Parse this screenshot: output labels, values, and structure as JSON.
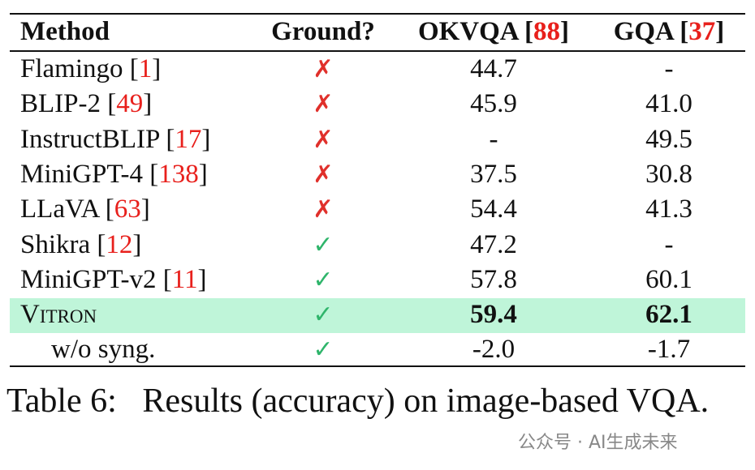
{
  "table": {
    "header": [
      {
        "text": "Method"
      },
      {
        "text": "Ground?"
      },
      {
        "text": "OKVQA [",
        "ref": "88",
        "close": "]"
      },
      {
        "text": "GQA [",
        "ref": "37",
        "close": "]"
      }
    ],
    "rows": [
      {
        "method": {
          "text": "Flamingo [",
          "ref": "1",
          "close": "]"
        },
        "ground": {
          "mark": "✗",
          "color": "#e0302b"
        },
        "okvqa": "44.7",
        "gqa": "-"
      },
      {
        "method": {
          "text": "BLIP-2 [",
          "ref": "49",
          "close": "]"
        },
        "ground": {
          "mark": "✗",
          "color": "#e0302b"
        },
        "okvqa": "45.9",
        "gqa": "41.0"
      },
      {
        "method": {
          "text": "InstructBLIP [",
          "ref": "17",
          "close": "]"
        },
        "ground": {
          "mark": "✗",
          "color": "#e0302b"
        },
        "okvqa": "-",
        "gqa": "49.5"
      },
      {
        "method": {
          "text": "MiniGPT-4 [",
          "ref": "138",
          "close": "]"
        },
        "ground": {
          "mark": "✗",
          "color": "#e0302b"
        },
        "okvqa": "37.5",
        "gqa": "30.8"
      },
      {
        "method": {
          "text": "LLaVA [",
          "ref": "63",
          "close": "]"
        },
        "ground": {
          "mark": "✗",
          "color": "#e0302b"
        },
        "okvqa": "54.4",
        "gqa": "41.3"
      },
      {
        "method": {
          "text": "Shikra [",
          "ref": "12",
          "close": "]"
        },
        "ground": {
          "mark": "✓",
          "color": "#2fb56b"
        },
        "okvqa": "47.2",
        "gqa": "-"
      },
      {
        "method": {
          "text": "MiniGPT-v2 [",
          "ref": "11",
          "close": "]"
        },
        "ground": {
          "mark": "✓",
          "color": "#2fb56b"
        },
        "okvqa": "57.8",
        "gqa": "60.1"
      },
      {
        "method": {
          "text": "Vitron"
        },
        "ground": {
          "mark": "✓",
          "color": "#2fb56b"
        },
        "okvqa": "59.4",
        "gqa": "62.1",
        "highlight": true
      },
      {
        "method": {
          "text": "w/o syng."
        },
        "ground": {
          "mark": "✓",
          "color": "#2fb56b"
        },
        "okvqa": "-2.0",
        "gqa": "-1.7",
        "indent": true
      }
    ]
  },
  "caption": {
    "label": "Table 6:",
    "text": "Results (accuracy) on image-based VQA."
  },
  "watermark": "公众号 · AI生成未来"
}
